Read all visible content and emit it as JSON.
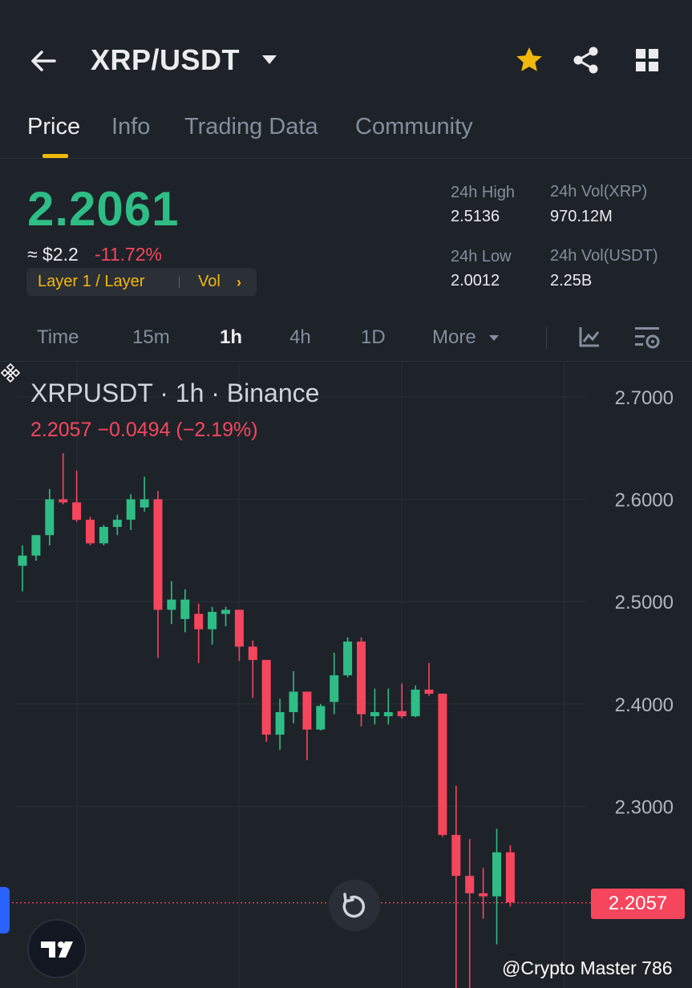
{
  "header": {
    "pair": "XRP/USDT",
    "icons": [
      "back-arrow-icon",
      "caret-down-icon",
      "star-icon",
      "share-icon",
      "grid-icon"
    ]
  },
  "tabs": [
    {
      "label": "Price",
      "active": true
    },
    {
      "label": "Info",
      "active": false
    },
    {
      "label": "Trading Data",
      "active": false
    },
    {
      "label": "Community",
      "active": false
    }
  ],
  "ticker": {
    "price": "2.2061",
    "approx": "≈ $2.2",
    "change": "-11.72%",
    "tag1": "Layer 1 / Layer",
    "tag2": "Vol",
    "tag_arrow": "›"
  },
  "stats": {
    "high_label": "24h High",
    "high_value": "2.5136",
    "low_label": "24h Low",
    "low_value": "2.0012",
    "vol_base_label": "24h Vol(XRP)",
    "vol_base_value": "970.12M",
    "vol_quote_label": "24h Vol(USDT)",
    "vol_quote_value": "2.25B"
  },
  "intervals": [
    {
      "label": "Time",
      "active": false
    },
    {
      "label": "15m",
      "active": false
    },
    {
      "label": "1h",
      "active": true
    },
    {
      "label": "4h",
      "active": false
    },
    {
      "label": "1D",
      "active": false
    },
    {
      "label": "More",
      "active": false
    }
  ],
  "chart_data": {
    "type": "candlestick",
    "title": "XRPUSDT · 1h · Binance",
    "last_change": "2.2057  −0.0494 (−2.19%)",
    "last_price": "2.2057",
    "ylim": [
      2.15,
      2.73
    ],
    "y_ticks": [
      "2.7000",
      "2.6000",
      "2.5000",
      "2.4000",
      "2.3000"
    ],
    "up_color": "#2ebd85",
    "down_color": "#f6465d",
    "candles": [
      {
        "o": 2.535,
        "h": 2.555,
        "l": 2.51,
        "c": 2.545
      },
      {
        "o": 2.545,
        "h": 2.565,
        "l": 2.54,
        "c": 2.565
      },
      {
        "o": 2.565,
        "h": 2.61,
        "l": 2.555,
        "c": 2.6
      },
      {
        "o": 2.6,
        "h": 2.645,
        "l": 2.595,
        "c": 2.597
      },
      {
        "o": 2.597,
        "h": 2.628,
        "l": 2.578,
        "c": 2.58
      },
      {
        "o": 2.58,
        "h": 2.583,
        "l": 2.555,
        "c": 2.557
      },
      {
        "o": 2.557,
        "h": 2.575,
        "l": 2.555,
        "c": 2.573
      },
      {
        "o": 2.573,
        "h": 2.585,
        "l": 2.565,
        "c": 2.58
      },
      {
        "o": 2.58,
        "h": 2.605,
        "l": 2.57,
        "c": 2.6
      },
      {
        "o": 2.592,
        "h": 2.622,
        "l": 2.588,
        "c": 2.6
      },
      {
        "o": 2.6,
        "h": 2.608,
        "l": 2.445,
        "c": 2.492
      },
      {
        "o": 2.492,
        "h": 2.52,
        "l": 2.478,
        "c": 2.502
      },
      {
        "o": 2.483,
        "h": 2.512,
        "l": 2.47,
        "c": 2.502
      },
      {
        "o": 2.488,
        "h": 2.498,
        "l": 2.44,
        "c": 2.473
      },
      {
        "o": 2.473,
        "h": 2.495,
        "l": 2.458,
        "c": 2.49
      },
      {
        "o": 2.488,
        "h": 2.495,
        "l": 2.476,
        "c": 2.492
      },
      {
        "o": 2.492,
        "h": 2.492,
        "l": 2.442,
        "c": 2.456
      },
      {
        "o": 2.456,
        "h": 2.462,
        "l": 2.406,
        "c": 2.443
      },
      {
        "o": 2.443,
        "h": 2.443,
        "l": 2.363,
        "c": 2.37
      },
      {
        "o": 2.37,
        "h": 2.405,
        "l": 2.355,
        "c": 2.392
      },
      {
        "o": 2.392,
        "h": 2.432,
        "l": 2.381,
        "c": 2.412
      },
      {
        "o": 2.412,
        "h": 2.412,
        "l": 2.345,
        "c": 2.375
      },
      {
        "o": 2.375,
        "h": 2.4,
        "l": 2.374,
        "c": 2.398
      },
      {
        "o": 2.402,
        "h": 2.45,
        "l": 2.39,
        "c": 2.428
      },
      {
        "o": 2.428,
        "h": 2.465,
        "l": 2.426,
        "c": 2.461
      },
      {
        "o": 2.461,
        "h": 2.465,
        "l": 2.378,
        "c": 2.39
      },
      {
        "o": 2.388,
        "h": 2.415,
        "l": 2.38,
        "c": 2.392
      },
      {
        "o": 2.388,
        "h": 2.415,
        "l": 2.38,
        "c": 2.392
      },
      {
        "o": 2.393,
        "h": 2.42,
        "l": 2.386,
        "c": 2.388
      },
      {
        "o": 2.388,
        "h": 2.418,
        "l": 2.387,
        "c": 2.414
      },
      {
        "o": 2.414,
        "h": 2.44,
        "l": 2.408,
        "c": 2.41
      },
      {
        "o": 2.41,
        "h": 2.41,
        "l": 2.27,
        "c": 2.272
      },
      {
        "o": 2.272,
        "h": 2.32,
        "l": 2.05,
        "c": 2.232
      },
      {
        "o": 2.232,
        "h": 2.268,
        "l": 2.1,
        "c": 2.215
      },
      {
        "o": 2.215,
        "h": 2.24,
        "l": 2.19,
        "c": 2.212
      },
      {
        "o": 2.212,
        "h": 2.278,
        "l": 2.165,
        "c": 2.255
      },
      {
        "o": 2.255,
        "h": 2.262,
        "l": 2.202,
        "c": 2.206
      }
    ],
    "grid": true
  },
  "watermark": "@Crypto Master 786"
}
